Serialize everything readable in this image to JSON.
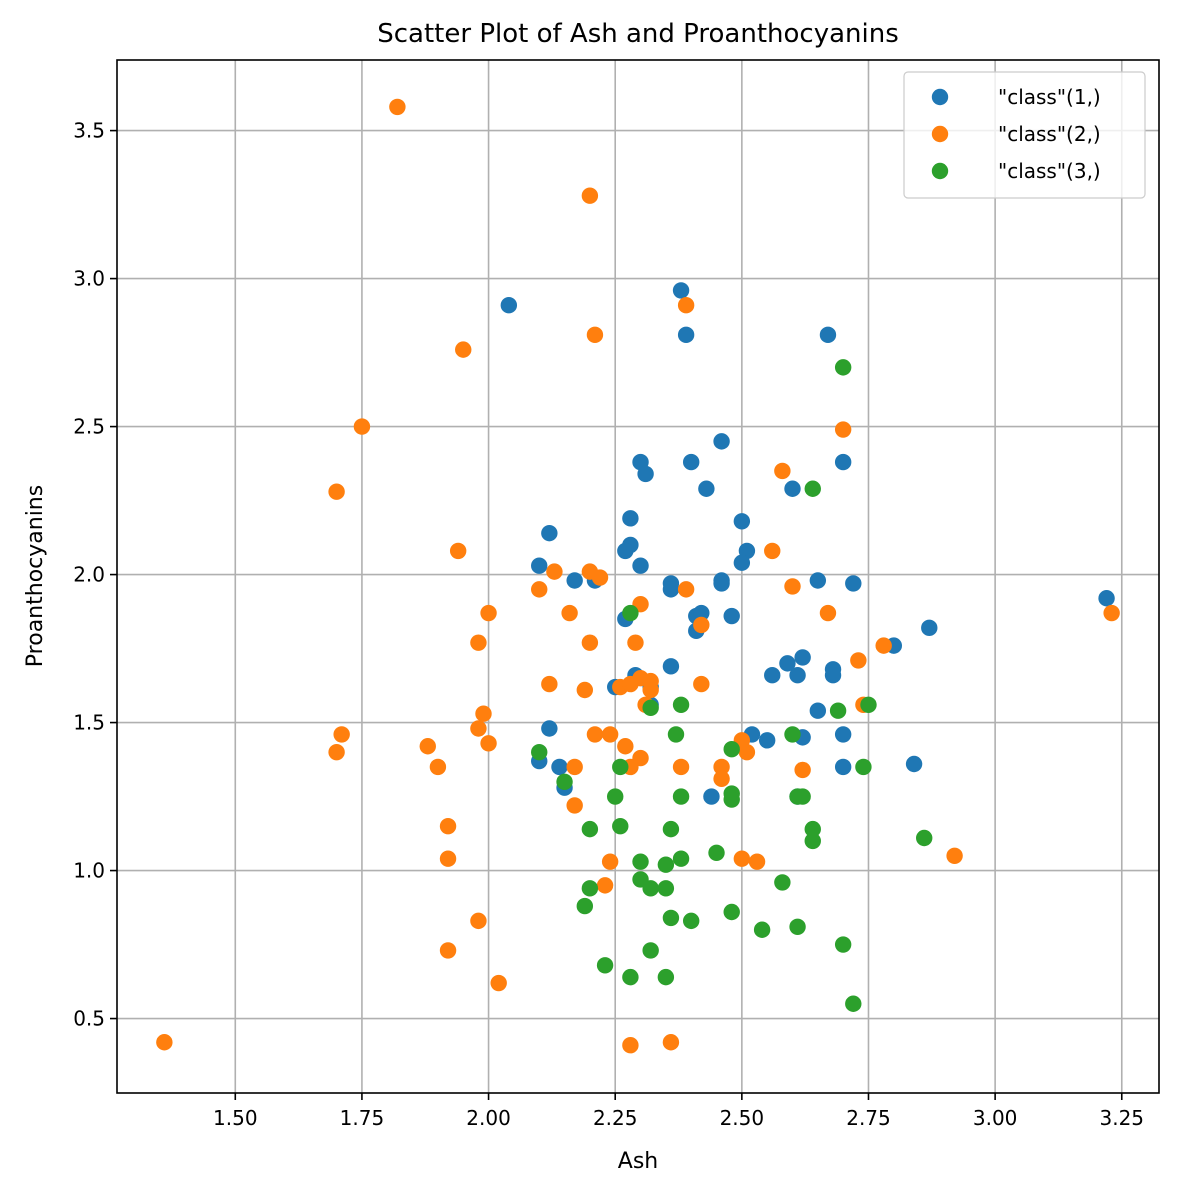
{
  "chart_data": {
    "type": "scatter",
    "title": "Scatter Plot of Ash and Proanthocyanins",
    "xlabel": "Ash",
    "ylabel": "Proanthocyanins",
    "xlim": [
      1.2665,
      3.3235
    ],
    "ylim": [
      0.2485,
      3.7385
    ],
    "xticks": [
      1.5,
      1.75,
      2.0,
      2.25,
      2.5,
      2.75,
      3.0,
      3.25
    ],
    "xtick_labels": [
      "1.50",
      "1.75",
      "2.00",
      "2.25",
      "2.50",
      "2.75",
      "3.00",
      "3.25"
    ],
    "yticks": [
      0.5,
      1.0,
      1.5,
      2.0,
      2.5,
      3.0,
      3.5
    ],
    "ytick_labels": [
      "0.5",
      "1.0",
      "1.5",
      "2.0",
      "2.5",
      "3.0",
      "3.5"
    ],
    "grid": true,
    "legend_position": "top-right",
    "series": [
      {
        "name": "\"class\"(1,)",
        "color": "#1f77b4",
        "points": [
          [
            2.04,
            2.91
          ],
          [
            2.38,
            2.96
          ],
          [
            2.39,
            2.81
          ],
          [
            2.67,
            2.81
          ],
          [
            2.46,
            2.45
          ],
          [
            2.3,
            2.38
          ],
          [
            2.4,
            2.38
          ],
          [
            2.7,
            2.38
          ],
          [
            2.31,
            2.34
          ],
          [
            2.43,
            2.29
          ],
          [
            2.6,
            2.29
          ],
          [
            2.28,
            2.19
          ],
          [
            2.5,
            2.18
          ],
          [
            2.12,
            2.14
          ],
          [
            2.28,
            2.1
          ],
          [
            2.27,
            2.08
          ],
          [
            2.51,
            2.08
          ],
          [
            2.5,
            2.04
          ],
          [
            2.1,
            2.03
          ],
          [
            2.3,
            2.03
          ],
          [
            2.17,
            1.98
          ],
          [
            2.21,
            1.98
          ],
          [
            2.46,
            1.98
          ],
          [
            2.65,
            1.98
          ],
          [
            2.36,
            1.97
          ],
          [
            2.46,
            1.97
          ],
          [
            2.72,
            1.97
          ],
          [
            2.36,
            1.95
          ],
          [
            3.22,
            1.92
          ],
          [
            2.41,
            1.86
          ],
          [
            2.42,
            1.87
          ],
          [
            2.48,
            1.86
          ],
          [
            2.27,
            1.85
          ],
          [
            2.87,
            1.82
          ],
          [
            2.41,
            1.81
          ],
          [
            2.8,
            1.76
          ],
          [
            2.62,
            1.72
          ],
          [
            2.59,
            1.7
          ],
          [
            2.36,
            1.69
          ],
          [
            2.68,
            1.68
          ],
          [
            2.56,
            1.66
          ],
          [
            2.61,
            1.66
          ],
          [
            2.68,
            1.66
          ],
          [
            2.29,
            1.66
          ],
          [
            2.25,
            1.62
          ],
          [
            2.32,
            1.62
          ],
          [
            2.32,
            1.56
          ],
          [
            2.65,
            1.54
          ],
          [
            2.12,
            1.48
          ],
          [
            2.52,
            1.46
          ],
          [
            2.7,
            1.46
          ],
          [
            2.55,
            1.44
          ],
          [
            2.62,
            1.45
          ],
          [
            2.1,
            1.37
          ],
          [
            2.14,
            1.35
          ],
          [
            2.7,
            1.35
          ],
          [
            2.84,
            1.36
          ],
          [
            2.15,
            1.28
          ],
          [
            2.44,
            1.25
          ],
          [
            2.61,
            1.25
          ]
        ]
      },
      {
        "name": "\"class\"(2,)",
        "color": "#ff7f0e",
        "points": [
          [
            1.82,
            3.58
          ],
          [
            2.2,
            3.28
          ],
          [
            2.39,
            2.91
          ],
          [
            2.21,
            2.81
          ],
          [
            1.95,
            2.76
          ],
          [
            1.75,
            2.5
          ],
          [
            2.7,
            2.49
          ],
          [
            2.58,
            2.35
          ],
          [
            1.7,
            2.28
          ],
          [
            1.94,
            2.08
          ],
          [
            2.56,
            2.08
          ],
          [
            2.13,
            2.01
          ],
          [
            2.2,
            2.01
          ],
          [
            2.22,
            1.99
          ],
          [
            2.1,
            1.95
          ],
          [
            2.39,
            1.95
          ],
          [
            2.6,
            1.96
          ],
          [
            2.3,
            1.9
          ],
          [
            2.0,
            1.87
          ],
          [
            2.16,
            1.87
          ],
          [
            2.67,
            1.87
          ],
          [
            3.23,
            1.87
          ],
          [
            2.42,
            1.83
          ],
          [
            1.98,
            1.77
          ],
          [
            2.2,
            1.77
          ],
          [
            2.29,
            1.77
          ],
          [
            2.78,
            1.76
          ],
          [
            2.73,
            1.71
          ],
          [
            2.3,
            1.65
          ],
          [
            2.26,
            1.62
          ],
          [
            2.28,
            1.63
          ],
          [
            2.32,
            1.64
          ],
          [
            2.32,
            1.61
          ],
          [
            2.12,
            1.63
          ],
          [
            2.42,
            1.63
          ],
          [
            2.19,
            1.61
          ],
          [
            2.31,
            1.56
          ],
          [
            2.74,
            1.56
          ],
          [
            1.99,
            1.53
          ],
          [
            1.98,
            1.48
          ],
          [
            1.71,
            1.46
          ],
          [
            2.21,
            1.46
          ],
          [
            2.24,
            1.46
          ],
          [
            2.0,
            1.43
          ],
          [
            2.5,
            1.44
          ],
          [
            1.88,
            1.42
          ],
          [
            2.27,
            1.42
          ],
          [
            1.7,
            1.4
          ],
          [
            2.51,
            1.4
          ],
          [
            2.3,
            1.38
          ],
          [
            1.9,
            1.35
          ],
          [
            2.17,
            1.35
          ],
          [
            2.28,
            1.35
          ],
          [
            2.38,
            1.35
          ],
          [
            2.46,
            1.35
          ],
          [
            2.62,
            1.34
          ],
          [
            2.46,
            1.31
          ],
          [
            2.17,
            1.22
          ],
          [
            1.92,
            1.15
          ],
          [
            2.92,
            1.05
          ],
          [
            1.92,
            1.04
          ],
          [
            2.5,
            1.04
          ],
          [
            2.24,
            1.03
          ],
          [
            2.53,
            1.03
          ],
          [
            2.23,
            0.95
          ],
          [
            1.98,
            0.83
          ],
          [
            1.92,
            0.73
          ],
          [
            2.02,
            0.62
          ],
          [
            1.36,
            0.42
          ],
          [
            2.36,
            0.42
          ],
          [
            2.28,
            0.41
          ]
        ]
      },
      {
        "name": "\"class\"(3,)",
        "color": "#2ca02c",
        "points": [
          [
            2.7,
            2.7
          ],
          [
            2.64,
            2.29
          ],
          [
            2.28,
            1.87
          ],
          [
            2.32,
            1.55
          ],
          [
            2.38,
            1.56
          ],
          [
            2.69,
            1.54
          ],
          [
            2.75,
            1.56
          ],
          [
            2.37,
            1.46
          ],
          [
            2.6,
            1.46
          ],
          [
            2.48,
            1.41
          ],
          [
            2.1,
            1.4
          ],
          [
            2.26,
            1.35
          ],
          [
            2.74,
            1.35
          ],
          [
            2.15,
            1.3
          ],
          [
            2.25,
            1.25
          ],
          [
            2.38,
            1.25
          ],
          [
            2.48,
            1.26
          ],
          [
            2.48,
            1.24
          ],
          [
            2.61,
            1.25
          ],
          [
            2.62,
            1.25
          ],
          [
            2.2,
            1.14
          ],
          [
            2.26,
            1.15
          ],
          [
            2.36,
            1.14
          ],
          [
            2.64,
            1.14
          ],
          [
            2.64,
            1.1
          ],
          [
            2.86,
            1.11
          ],
          [
            2.45,
            1.06
          ],
          [
            2.38,
            1.04
          ],
          [
            2.3,
            1.03
          ],
          [
            2.35,
            1.02
          ],
          [
            2.3,
            0.97
          ],
          [
            2.58,
            0.96
          ],
          [
            2.2,
            0.94
          ],
          [
            2.32,
            0.94
          ],
          [
            2.35,
            0.94
          ],
          [
            2.19,
            0.88
          ],
          [
            2.48,
            0.86
          ],
          [
            2.36,
            0.84
          ],
          [
            2.4,
            0.83
          ],
          [
            2.61,
            0.81
          ],
          [
            2.54,
            0.8
          ],
          [
            2.7,
            0.75
          ],
          [
            2.32,
            0.73
          ],
          [
            2.23,
            0.68
          ],
          [
            2.28,
            0.64
          ],
          [
            2.35,
            0.64
          ],
          [
            2.72,
            0.55
          ]
        ]
      }
    ]
  }
}
